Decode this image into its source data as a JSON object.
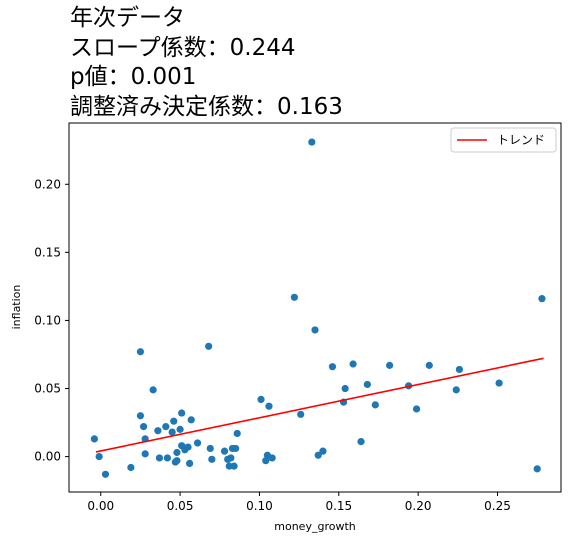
{
  "chart_data": {
    "type": "scatter",
    "title_lines": [
      "年次データ",
      "スロープ係数：0.244",
      "p値：0.001",
      "調整済み決定係数：0.163"
    ],
    "xlabel": "money_growth",
    "ylabel": "inflation",
    "xlim": [
      -0.02,
      0.29
    ],
    "ylim": [
      -0.026,
      0.245
    ],
    "xticks": [
      0.0,
      0.05,
      0.1,
      0.15,
      0.2,
      0.25
    ],
    "xtick_labels": [
      "0.00",
      "0.05",
      "0.10",
      "0.15",
      "0.20",
      "0.25"
    ],
    "yticks": [
      0.0,
      0.05,
      0.1,
      0.15,
      0.2
    ],
    "ytick_labels": [
      "0.00",
      "0.05",
      "0.10",
      "0.15",
      "0.20"
    ],
    "grid": false,
    "legend": {
      "position": "top-right",
      "entries": [
        "トレンド"
      ]
    },
    "colors": {
      "points": "#1f77b4",
      "trend": "#ff0000"
    },
    "trend": {
      "x": [
        -0.003,
        0.279
      ],
      "y": [
        0.0034,
        0.0722
      ]
    },
    "points": [
      [
        -0.004,
        0.013
      ],
      [
        -0.001,
        0.0
      ],
      [
        0.003,
        -0.013
      ],
      [
        0.019,
        -0.008
      ],
      [
        0.025,
        0.03
      ],
      [
        0.025,
        0.077
      ],
      [
        0.027,
        0.022
      ],
      [
        0.028,
        0.013
      ],
      [
        0.028,
        0.002
      ],
      [
        0.033,
        0.049
      ],
      [
        0.036,
        0.019
      ],
      [
        0.037,
        -0.001
      ],
      [
        0.041,
        0.022
      ],
      [
        0.042,
        -0.001
      ],
      [
        0.045,
        0.018
      ],
      [
        0.046,
        0.026
      ],
      [
        0.047,
        -0.004
      ],
      [
        0.048,
        -0.003
      ],
      [
        0.048,
        0.003
      ],
      [
        0.05,
        0.02
      ],
      [
        0.051,
        0.032
      ],
      [
        0.051,
        0.008
      ],
      [
        0.053,
        0.005
      ],
      [
        0.055,
        0.007
      ],
      [
        0.056,
        -0.005
      ],
      [
        0.057,
        0.027
      ],
      [
        0.061,
        0.01
      ],
      [
        0.068,
        0.081
      ],
      [
        0.069,
        0.006
      ],
      [
        0.07,
        -0.002
      ],
      [
        0.078,
        0.004
      ],
      [
        0.08,
        -0.002
      ],
      [
        0.081,
        -0.007
      ],
      [
        0.082,
        -0.001
      ],
      [
        0.083,
        0.006
      ],
      [
        0.084,
        -0.007
      ],
      [
        0.085,
        0.006
      ],
      [
        0.086,
        0.017
      ],
      [
        0.101,
        0.042
      ],
      [
        0.104,
        -0.003
      ],
      [
        0.105,
        0.001
      ],
      [
        0.106,
        0.037
      ],
      [
        0.108,
        -0.001
      ],
      [
        0.122,
        0.117
      ],
      [
        0.126,
        0.031
      ],
      [
        0.133,
        0.231
      ],
      [
        0.135,
        0.093
      ],
      [
        0.137,
        0.001
      ],
      [
        0.14,
        0.004
      ],
      [
        0.146,
        0.066
      ],
      [
        0.153,
        0.04
      ],
      [
        0.154,
        0.05
      ],
      [
        0.159,
        0.068
      ],
      [
        0.164,
        0.011
      ],
      [
        0.168,
        0.053
      ],
      [
        0.173,
        0.038
      ],
      [
        0.182,
        0.067
      ],
      [
        0.194,
        0.052
      ],
      [
        0.199,
        0.035
      ],
      [
        0.207,
        0.067
      ],
      [
        0.224,
        0.049
      ],
      [
        0.226,
        0.064
      ],
      [
        0.251,
        0.054
      ],
      [
        0.275,
        -0.009
      ],
      [
        0.278,
        0.116
      ]
    ]
  }
}
